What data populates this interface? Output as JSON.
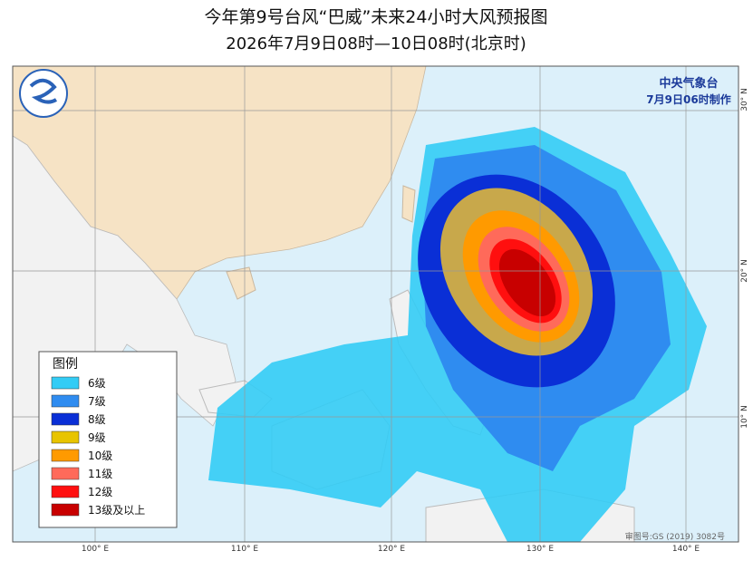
{
  "header": {
    "title": "今年第9号台风“巴威”未来24小时大风预报图",
    "subtitle": "2026年7月9日08时—10日08时(北京时)"
  },
  "issuer": {
    "name": "中央气象台",
    "time": "7月9日06时制作"
  },
  "legend": {
    "title": "图例",
    "items": [
      {
        "label": "6级",
        "color": "#33ccf5"
      },
      {
        "label": "7级",
        "color": "#2f8cf0"
      },
      {
        "label": "8级",
        "color": "#0a2fd6"
      },
      {
        "label": "9级",
        "color": "#e8c400"
      },
      {
        "label": "10级",
        "color": "#ff9a00"
      },
      {
        "label": "11级",
        "color": "#ff6a5a"
      },
      {
        "label": "12级",
        "color": "#ff0f0f"
      },
      {
        "label": "13级及以上",
        "color": "#c80000"
      }
    ]
  },
  "axes": {
    "longitudes": [
      "100° E",
      "110° E",
      "120° E",
      "130° E",
      "140° E"
    ],
    "latitudes": [
      "30° N",
      "20° N",
      "10° N"
    ]
  },
  "footer": {
    "approval": "审图号:GS (2019) 3082号"
  }
}
